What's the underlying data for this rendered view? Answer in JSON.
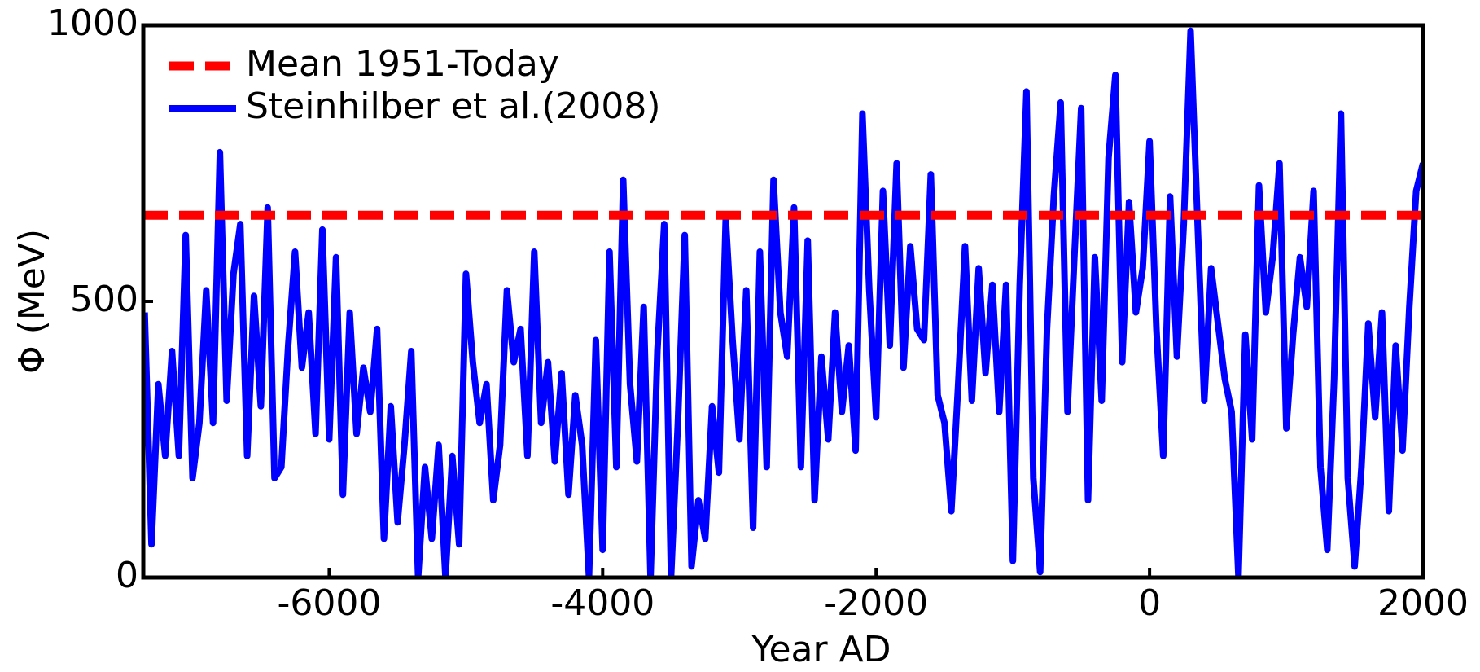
{
  "chart_data": {
    "type": "line",
    "xlabel": "Year AD",
    "ylabel": "Φ (MeV)",
    "xlim": [
      -7360,
      2000
    ],
    "xticks": [
      -6000,
      -4000,
      -2000,
      0,
      2000
    ],
    "ylim": [
      0,
      1000
    ],
    "yticks": [
      0,
      500,
      1000
    ],
    "legend": "upper left",
    "x": [
      -7350,
      -7300,
      -7250,
      -7200,
      -7150,
      -7100,
      -7050,
      -7000,
      -6950,
      -6900,
      -6850,
      -6800,
      -6750,
      -6700,
      -6650,
      -6600,
      -6550,
      -6500,
      -6450,
      -6400,
      -6350,
      -6300,
      -6250,
      -6200,
      -6150,
      -6100,
      -6050,
      -6000,
      -5950,
      -5900,
      -5850,
      -5800,
      -5750,
      -5700,
      -5650,
      -5600,
      -5550,
      -5500,
      -5450,
      -5400,
      -5350,
      -5300,
      -5250,
      -5200,
      -5150,
      -5100,
      -5050,
      -5000,
      -4950,
      -4900,
      -4850,
      -4800,
      -4750,
      -4700,
      -4650,
      -4600,
      -4550,
      -4500,
      -4450,
      -4400,
      -4350,
      -4300,
      -4250,
      -4200,
      -4150,
      -4100,
      -4050,
      -4000,
      -3950,
      -3900,
      -3850,
      -3800,
      -3750,
      -3700,
      -3650,
      -3600,
      -3550,
      -3500,
      -3450,
      -3400,
      -3350,
      -3300,
      -3250,
      -3200,
      -3150,
      -3100,
      -3050,
      -3000,
      -2950,
      -2900,
      -2850,
      -2800,
      -2750,
      -2700,
      -2650,
      -2600,
      -2550,
      -2500,
      -2450,
      -2400,
      -2350,
      -2300,
      -2250,
      -2200,
      -2150,
      -2100,
      -2050,
      -2000,
      -1950,
      -1900,
      -1850,
      -1800,
      -1750,
      -1700,
      -1650,
      -1600,
      -1550,
      -1500,
      -1450,
      -1400,
      -1350,
      -1300,
      -1250,
      -1200,
      -1150,
      -1100,
      -1050,
      -1000,
      -950,
      -900,
      -850,
      -800,
      -750,
      -700,
      -650,
      -600,
      -550,
      -500,
      -450,
      -400,
      -350,
      -300,
      -250,
      -200,
      -150,
      -100,
      -50,
      0,
      50,
      100,
      150,
      200,
      250,
      300,
      350,
      400,
      450,
      500,
      550,
      600,
      650,
      700,
      750,
      800,
      850,
      900,
      950,
      1000,
      1050,
      1100,
      1150,
      1200,
      1250,
      1300,
      1350,
      1400,
      1450,
      1500,
      1550,
      1600,
      1650,
      1700,
      1750,
      1800,
      1850,
      1900,
      1950,
      2000
    ],
    "series": [
      {
        "name": "Mean 1951-Today",
        "color": "#ff0000",
        "y": 656,
        "dashed": true
      },
      {
        "name": "Steinhilber et al.(2008)",
        "color": "#0000ff",
        "values": [
          480,
          60,
          350,
          220,
          410,
          220,
          620,
          180,
          280,
          520,
          280,
          770,
          320,
          550,
          640,
          220,
          510,
          310,
          670,
          180,
          200,
          420,
          590,
          380,
          480,
          260,
          630,
          250,
          580,
          150,
          480,
          260,
          380,
          300,
          450,
          70,
          310,
          100,
          240,
          410,
          0,
          200,
          70,
          240,
          0,
          220,
          60,
          550,
          390,
          280,
          350,
          140,
          240,
          520,
          390,
          450,
          220,
          590,
          280,
          390,
          210,
          370,
          150,
          330,
          240,
          0,
          430,
          50,
          590,
          200,
          720,
          350,
          210,
          490,
          0,
          410,
          640,
          0,
          280,
          620,
          20,
          140,
          70,
          310,
          190,
          650,
          430,
          250,
          520,
          90,
          590,
          200,
          720,
          480,
          400,
          670,
          200,
          610,
          140,
          400,
          250,
          480,
          300,
          420,
          230,
          840,
          520,
          290,
          700,
          420,
          750,
          380,
          600,
          450,
          430,
          730,
          330,
          280,
          120,
          350,
          600,
          320,
          560,
          370,
          530,
          300,
          530,
          30,
          530,
          880,
          180,
          10,
          450,
          690,
          860,
          300,
          580,
          850,
          140,
          580,
          320,
          760,
          910,
          390,
          680,
          480,
          560,
          790,
          450,
          220,
          690,
          400,
          640,
          990,
          650,
          320,
          560,
          460,
          360,
          300,
          0,
          440,
          250,
          710,
          480,
          580,
          750,
          270,
          440,
          580,
          490,
          700,
          200,
          50,
          360,
          840,
          180,
          20,
          200,
          460,
          290,
          480,
          120,
          420,
          230,
          490,
          700,
          750
        ]
      }
    ]
  }
}
